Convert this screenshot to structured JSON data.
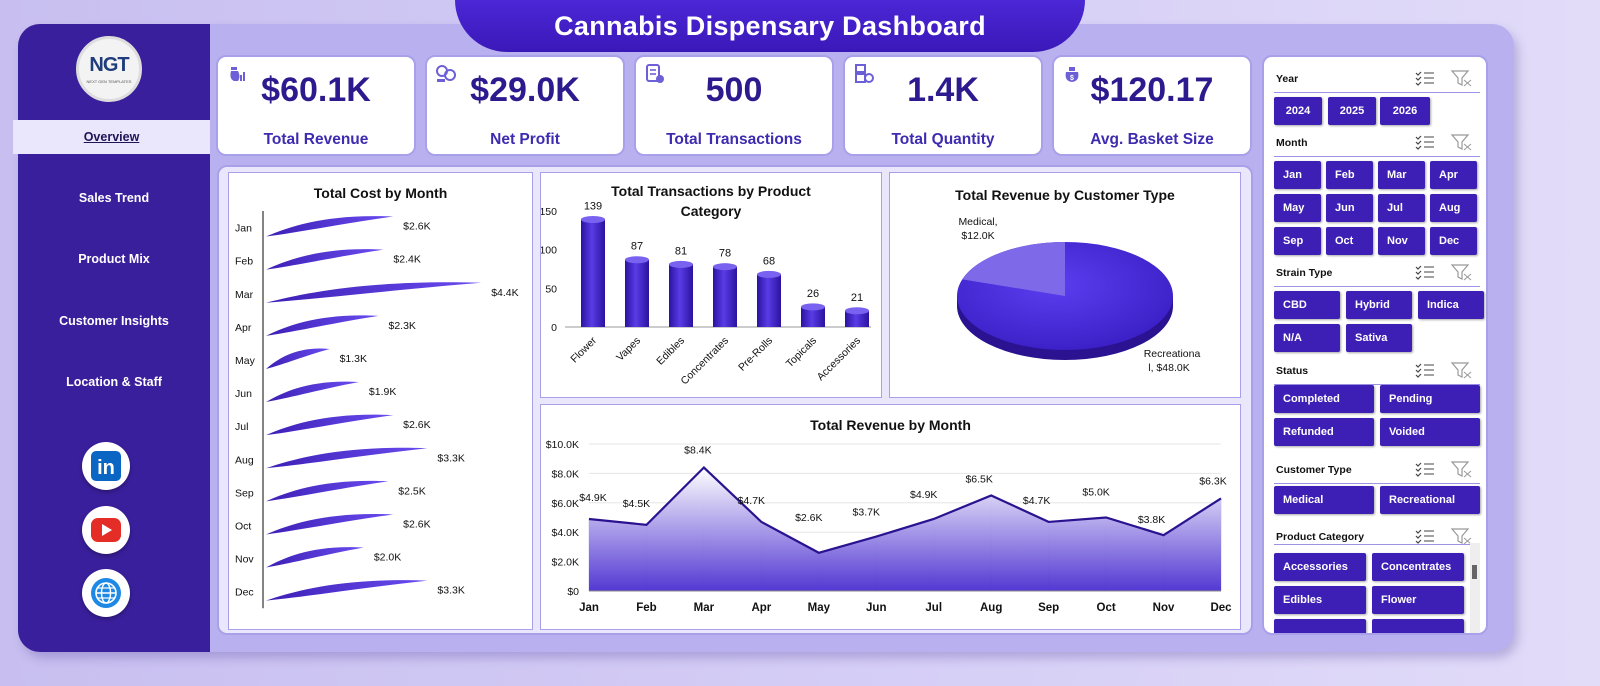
{
  "header": {
    "title": "Cannabis Dispensary Dashboard"
  },
  "logo": {
    "text": "NGT",
    "subtext": "NEXT GEN TEMPLATES"
  },
  "sidebar": {
    "items": [
      {
        "label": "Overview",
        "active": true
      },
      {
        "label": "Sales Trend",
        "active": false
      },
      {
        "label": "Product Mix",
        "active": false
      },
      {
        "label": "Customer Insights",
        "active": false
      },
      {
        "label": "Location & Staff",
        "active": false
      }
    ],
    "social": [
      {
        "icon": "linkedin-icon",
        "text": "in",
        "color": "#0a66c2"
      },
      {
        "icon": "youtube-icon",
        "color": "#e52d27"
      },
      {
        "icon": "globe-icon",
        "color": "#1e88e5"
      }
    ]
  },
  "kpis": [
    {
      "value": "$60.1K",
      "label": "Total Revenue",
      "icon": "money-bag-chart-icon"
    },
    {
      "value": "$29.0K",
      "label": "Net Profit",
      "icon": "coins-icon"
    },
    {
      "value": "500",
      "label": "Total Transactions",
      "icon": "receipt-icon"
    },
    {
      "value": "1.4K",
      "label": "Total Quantity",
      "icon": "boxes-icon"
    },
    {
      "value": "$120.17",
      "label": "Avg. Basket Size",
      "icon": "basket-icon"
    }
  ],
  "colors": {
    "primary": "#3d1fb5",
    "sidebar": "#3a1f9c",
    "accent": "#6a4cf0"
  },
  "chart_data": [
    {
      "type": "bar",
      "orientation": "horizontal",
      "title": "Total Cost by Month",
      "categories": [
        "Jan",
        "Feb",
        "Mar",
        "Apr",
        "May",
        "Jun",
        "Jul",
        "Aug",
        "Sep",
        "Oct",
        "Nov",
        "Dec"
      ],
      "values": [
        2.6,
        2.4,
        4.4,
        2.3,
        1.3,
        1.9,
        2.6,
        3.3,
        2.5,
        2.6,
        2.0,
        3.3
      ],
      "labels": [
        "$2.6K",
        "$2.4K",
        "$4.4K",
        "$2.3K",
        "$1.3K",
        "$1.9K",
        "$2.6K",
        "$3.3K",
        "$2.5K",
        "$2.6K",
        "$2.0K",
        "$3.3K"
      ]
    },
    {
      "type": "bar",
      "title": "Total Transactions  by Product Category",
      "categories": [
        "Flower",
        "Vapes",
        "Edibles",
        "Concentrates",
        "Pre-Rolls",
        "Topicals",
        "Accessories"
      ],
      "values": [
        139,
        87,
        81,
        78,
        68,
        26,
        21
      ],
      "yticks": [
        "0",
        "50",
        "100",
        "150"
      ],
      "ylim": [
        0,
        150
      ]
    },
    {
      "type": "pie",
      "title": "Total Revenue by Customer Type",
      "slices": [
        {
          "name": "Medical",
          "value": 12.0,
          "label_name": "Medical,",
          "label_value": "$12.0K"
        },
        {
          "name": "Recreational",
          "value": 48.0,
          "label_name": "Recreationa",
          "label_name2": "l, $48.0K"
        }
      ]
    },
    {
      "type": "area",
      "title": "Total Revenue  by Month",
      "categories": [
        "Jan",
        "Feb",
        "Mar",
        "Apr",
        "May",
        "Jun",
        "Jul",
        "Aug",
        "Sep",
        "Oct",
        "Nov",
        "Dec"
      ],
      "values": [
        4.9,
        4.5,
        8.4,
        4.7,
        2.6,
        3.7,
        4.9,
        6.5,
        4.7,
        5.0,
        3.8,
        6.3
      ],
      "labels": [
        "$4.9K",
        "$4.5K",
        "$8.4K",
        "$4.7K",
        "$2.6K",
        "$3.7K",
        "$4.9K",
        "$6.5K",
        "$4.7K",
        "$5.0K",
        "$3.8K",
        "$6.3K"
      ],
      "yticks": [
        "$0",
        "$2.0K",
        "$4.0K",
        "$6.0K",
        "$8.0K",
        "$10.0K"
      ],
      "ylim": [
        0,
        10
      ]
    }
  ],
  "slicers": [
    {
      "title": "Year",
      "items": [
        "2024",
        "2025",
        "2026"
      ]
    },
    {
      "title": "Month",
      "items": [
        "Jan",
        "Feb",
        "Mar",
        "Apr",
        "May",
        "Jun",
        "Jul",
        "Aug",
        "Sep",
        "Oct",
        "Nov",
        "Dec"
      ]
    },
    {
      "title": "Strain Type",
      "items": [
        "CBD",
        "Hybrid",
        "Indica",
        "N/A",
        "Sativa"
      ]
    },
    {
      "title": "Status",
      "items": [
        "Completed",
        "Pending",
        "Refunded",
        "Voided"
      ]
    },
    {
      "title": "Customer Type",
      "items": [
        "Medical",
        "Recreational"
      ]
    },
    {
      "title": "Product Category",
      "items": [
        "Accessories",
        "Concentrates",
        "Edibles",
        "Flower"
      ]
    }
  ]
}
